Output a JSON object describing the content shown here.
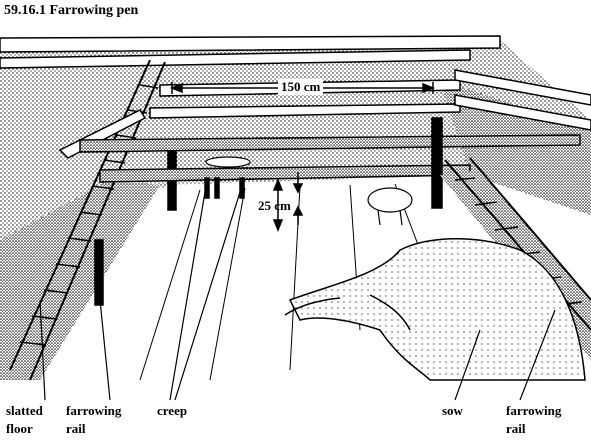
{
  "figure": {
    "title": "59.16.1  Farrowing pen",
    "dimensions": {
      "width": "150 cm",
      "height": "25 cm"
    },
    "labels": {
      "slatted_floor": [
        "slatted",
        "floor"
      ],
      "farrowing_rail_left": [
        "farrowing",
        "rail"
      ],
      "creep": "creep",
      "sow": "sow",
      "farrowing_rail_right": [
        "farrowing",
        "rail"
      ]
    }
  }
}
